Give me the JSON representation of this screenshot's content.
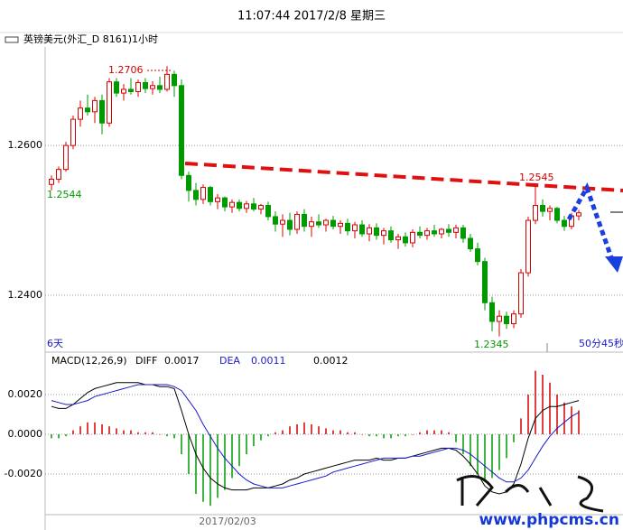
{
  "header": {
    "time": "11:07:44 2017/2/8 星期三",
    "symbol": "英镑美元(外汇_D 8161)1小时"
  },
  "watermark": "www.phpcms.cn",
  "chart_data": [
    {
      "type": "candlestick",
      "up_color": "#d40000",
      "down_color": "#009a00",
      "ylim": [
        1.2324,
        1.2728
      ],
      "yticks": [
        {
          "value": 1.26,
          "label": "1.2600"
        },
        {
          "value": 1.24,
          "label": "1.2400"
        }
      ],
      "grid": true,
      "annotations": {
        "high": "1.2706",
        "recent_high": "1.2545",
        "left_price": "1.2544",
        "low": "1.2345",
        "left_span": "6天",
        "countdown": "50分45秒",
        "date": "2017/02/03"
      },
      "candles": [
        [
          1.2548,
          1.256,
          1.254,
          1.2555
        ],
        [
          1.2555,
          1.2572,
          1.255,
          1.2568
        ],
        [
          1.2568,
          1.2605,
          1.2565,
          1.26
        ],
        [
          1.26,
          1.264,
          1.2595,
          1.2635
        ],
        [
          1.2635,
          1.266,
          1.2625,
          1.265
        ],
        [
          1.265,
          1.2668,
          1.264,
          1.2645
        ],
        [
          1.2645,
          1.2665,
          1.263,
          1.266
        ],
        [
          1.266,
          1.2668,
          1.2615,
          1.263
        ],
        [
          1.263,
          1.269,
          1.2625,
          1.2685
        ],
        [
          1.2685,
          1.269,
          1.2665,
          1.267
        ],
        [
          1.267,
          1.2682,
          1.266,
          1.2675
        ],
        [
          1.2675,
          1.269,
          1.2668,
          1.2672
        ],
        [
          1.2672,
          1.2688,
          1.2665,
          1.2684
        ],
        [
          1.2684,
          1.269,
          1.267,
          1.2676
        ],
        [
          1.2676,
          1.2686,
          1.2668,
          1.268
        ],
        [
          1.268,
          1.2692,
          1.267,
          1.2675
        ],
        [
          1.2675,
          1.2706,
          1.2672,
          1.2695
        ],
        [
          1.2695,
          1.27,
          1.2665,
          1.268
        ],
        [
          1.268,
          1.2688,
          1.2555,
          1.256
        ],
        [
          1.256,
          1.2565,
          1.2525,
          1.254
        ],
        [
          1.254,
          1.255,
          1.252,
          1.2528
        ],
        [
          1.2528,
          1.2548,
          1.2522,
          1.2544
        ],
        [
          1.2544,
          1.2546,
          1.252,
          1.2525
        ],
        [
          1.2525,
          1.2535,
          1.2515,
          1.253
        ],
        [
          1.253,
          1.2532,
          1.2512,
          1.2518
        ],
        [
          1.2518,
          1.2528,
          1.251,
          1.2524
        ],
        [
          1.2524,
          1.2528,
          1.2512,
          1.2516
        ],
        [
          1.2516,
          1.2526,
          1.251,
          1.2522
        ],
        [
          1.2522,
          1.253,
          1.2512,
          1.2515
        ],
        [
          1.2515,
          1.2522,
          1.2508,
          1.252
        ],
        [
          1.252,
          1.2525,
          1.25,
          1.2505
        ],
        [
          1.2505,
          1.2512,
          1.2485,
          1.2495
        ],
        [
          1.2495,
          1.2508,
          1.2478,
          1.25
        ],
        [
          1.25,
          1.251,
          1.248,
          1.2488
        ],
        [
          1.2488,
          1.2512,
          1.2482,
          1.2508
        ],
        [
          1.2508,
          1.2515,
          1.2485,
          1.2492
        ],
        [
          1.2492,
          1.2505,
          1.2478,
          1.2498
        ],
        [
          1.2498,
          1.2508,
          1.249,
          1.2494
        ],
        [
          1.2494,
          1.2502,
          1.2485,
          1.25
        ],
        [
          1.25,
          1.2506,
          1.2488,
          1.2492
        ],
        [
          1.2492,
          1.25,
          1.2482,
          1.2496
        ],
        [
          1.2496,
          1.2502,
          1.248,
          1.2486
        ],
        [
          1.2486,
          1.2498,
          1.2476,
          1.2494
        ],
        [
          1.2494,
          1.25,
          1.2478,
          1.2482
        ],
        [
          1.2482,
          1.2495,
          1.2472,
          1.249
        ],
        [
          1.249,
          1.2496,
          1.2474,
          1.248
        ],
        [
          1.248,
          1.249,
          1.2468,
          1.2486
        ],
        [
          1.2486,
          1.2492,
          1.247,
          1.2474
        ],
        [
          1.2474,
          1.2482,
          1.2462,
          1.2478
        ],
        [
          1.2478,
          1.2484,
          1.2465,
          1.247
        ],
        [
          1.247,
          1.2488,
          1.2464,
          1.2484
        ],
        [
          1.2484,
          1.2492,
          1.2476,
          1.248
        ],
        [
          1.248,
          1.249,
          1.2474,
          1.2486
        ],
        [
          1.2486,
          1.2494,
          1.2478,
          1.2482
        ],
        [
          1.2482,
          1.249,
          1.2476,
          1.2488
        ],
        [
          1.2488,
          1.2495,
          1.2478,
          1.2484
        ],
        [
          1.2484,
          1.2494,
          1.2476,
          1.249
        ],
        [
          1.249,
          1.2494,
          1.247,
          1.2476
        ],
        [
          1.2476,
          1.2482,
          1.2458,
          1.2462
        ],
        [
          1.2462,
          1.247,
          1.244,
          1.2445
        ],
        [
          1.2445,
          1.245,
          1.238,
          1.239
        ],
        [
          1.239,
          1.2398,
          1.2352,
          1.2365
        ],
        [
          1.2365,
          1.238,
          1.2345,
          1.2372
        ],
        [
          1.2372,
          1.2378,
          1.2355,
          1.2362
        ],
        [
          1.2362,
          1.238,
          1.2356,
          1.2375
        ],
        [
          1.2375,
          1.2435,
          1.237,
          1.243
        ],
        [
          1.243,
          1.2505,
          1.2425,
          1.25
        ],
        [
          1.25,
          1.2545,
          1.2495,
          1.252
        ],
        [
          1.252,
          1.2528,
          1.2505,
          1.2512
        ],
        [
          1.2512,
          1.252,
          1.25,
          1.2516
        ],
        [
          1.2516,
          1.2518,
          1.2496,
          1.25
        ],
        [
          1.25,
          1.2506,
          1.2486,
          1.2492
        ],
        [
          1.2492,
          1.251,
          1.2488,
          1.2506
        ],
        [
          1.2506,
          1.2514,
          1.25,
          1.251
        ]
      ]
    },
    {
      "type": "macd",
      "title": "MACD(12,26,9)",
      "legend": {
        "diff_name": "DIFF",
        "diff_value": "0.0017",
        "dea_name": "DEA",
        "dea_value": "0.0011",
        "macd_value": "0.0012"
      },
      "ylim": [
        -0.004,
        0.004
      ],
      "yticks": [
        {
          "value": 0.002,
          "label": "0.0020"
        },
        {
          "value": 0,
          "label": "0.0000"
        },
        {
          "value": -0.002,
          "label": "-0.0020"
        }
      ],
      "grid": true,
      "pos_color": "#d40000",
      "neg_color": "#009a00",
      "diff_color": "#000000",
      "dea_color": "#1a1acc",
      "histogram": [
        -0.0002,
        -0.0002,
        -0.0001,
        0.0002,
        0.0004,
        0.0006,
        0.0006,
        0.0005,
        0.0004,
        0.0003,
        0.0002,
        0.0002,
        0.0001,
        0.0001,
        0.0001,
        0,
        -0.0001,
        -0.0002,
        -0.001,
        -0.002,
        -0.003,
        -0.0034,
        -0.0036,
        -0.0032,
        -0.0028,
        -0.0022,
        -0.0016,
        -0.001,
        -0.0006,
        -0.0003,
        -0.0001,
        0.0001,
        0.0002,
        0.0004,
        0.0005,
        0.0006,
        0.0005,
        0.0004,
        0.0003,
        0.0002,
        0.0002,
        0.0001,
        0.0001,
        0,
        -0.0001,
        -0.0001,
        -0.0002,
        -0.0002,
        -0.0001,
        -0.0001,
        0,
        0.0001,
        0.0002,
        0.0002,
        0.0002,
        0.0001,
        -0.0004,
        -0.001,
        -0.0016,
        -0.002,
        -0.0024,
        -0.0022,
        -0.0018,
        -0.0012,
        -0.0004,
        0.0008,
        0.002,
        0.0032,
        0.003,
        0.0026,
        0.002,
        0.0016,
        0.0014,
        0.0012
      ],
      "diff": [
        0.0014,
        0.0013,
        0.0013,
        0.0015,
        0.0018,
        0.0021,
        0.0023,
        0.0024,
        0.0025,
        0.0026,
        0.0026,
        0.0026,
        0.0026,
        0.0025,
        0.0025,
        0.0024,
        0.0024,
        0.0023,
        0.0012,
        0,
        -0.001,
        -0.0017,
        -0.0022,
        -0.0025,
        -0.0027,
        -0.0028,
        -0.0028,
        -0.0028,
        -0.0027,
        -0.0027,
        -0.0027,
        -0.0026,
        -0.0025,
        -0.0023,
        -0.0022,
        -0.002,
        -0.0019,
        -0.0018,
        -0.0017,
        -0.0016,
        -0.0015,
        -0.0014,
        -0.0013,
        -0.0013,
        -0.0013,
        -0.0012,
        -0.0013,
        -0.0013,
        -0.0012,
        -0.0012,
        -0.0011,
        -0.001,
        -0.0009,
        -0.0008,
        -0.0007,
        -0.0007,
        -0.0008,
        -0.0011,
        -0.0015,
        -0.002,
        -0.0026,
        -0.0029,
        -0.003,
        -0.0029,
        -0.0025,
        -0.0015,
        -0.0002,
        0.0008,
        0.0012,
        0.0014,
        0.0014,
        0.0015,
        0.0016,
        0.0017
      ],
      "dea": [
        0.0017,
        0.0016,
        0.0015,
        0.0015,
        0.0016,
        0.0017,
        0.0019,
        0.002,
        0.0021,
        0.0022,
        0.0023,
        0.0024,
        0.0025,
        0.0025,
        0.0025,
        0.0025,
        0.0025,
        0.0024,
        0.0022,
        0.0017,
        0.0012,
        0.0005,
        -0.0001,
        -0.0007,
        -0.0012,
        -0.0016,
        -0.002,
        -0.0023,
        -0.0025,
        -0.0026,
        -0.0027,
        -0.0027,
        -0.0027,
        -0.0026,
        -0.0025,
        -0.0024,
        -0.0023,
        -0.0022,
        -0.0021,
        -0.0019,
        -0.0018,
        -0.0017,
        -0.0016,
        -0.0015,
        -0.0014,
        -0.0013,
        -0.0012,
        -0.0012,
        -0.0012,
        -0.0012,
        -0.0011,
        -0.0011,
        -0.001,
        -0.0009,
        -0.0008,
        -0.0007,
        -0.0007,
        -0.0008,
        -0.001,
        -0.0013,
        -0.0016,
        -0.0019,
        -0.0022,
        -0.0024,
        -0.0024,
        -0.0022,
        -0.0018,
        -0.0012,
        -0.0006,
        -0.0001,
        0.0003,
        0.0006,
        0.0009,
        0.0011
      ]
    }
  ]
}
